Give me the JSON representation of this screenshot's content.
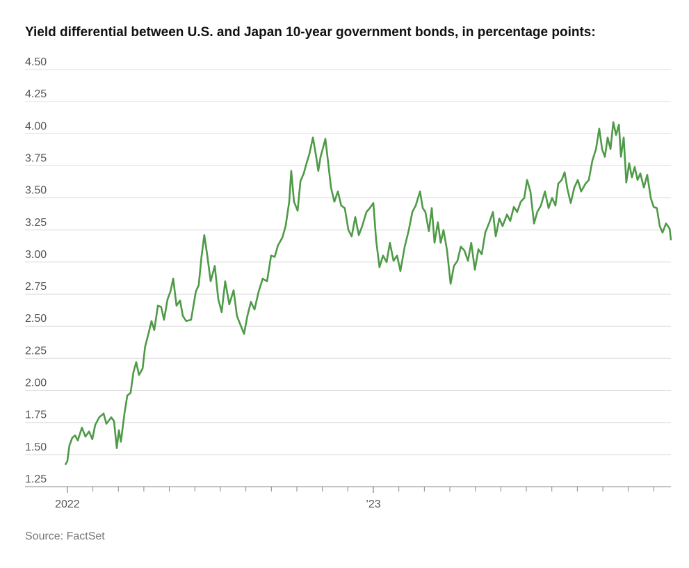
{
  "chart_data": {
    "type": "line",
    "title": "Yield differential between U.S. and Japan 10-year government bonds, in percentage points:",
    "source": "Source: FactSet",
    "x": [
      -0.08,
      0,
      0.08,
      0.19,
      0.3,
      0.41,
      0.57,
      0.71,
      0.85,
      0.98,
      1.09,
      1.25,
      1.42,
      1.53,
      1.72,
      1.83,
      1.94,
      2.02,
      2.1,
      2.24,
      2.35,
      2.48,
      2.59,
      2.7,
      2.81,
      2.95,
      3.05,
      3.19,
      3.3,
      3.41,
      3.55,
      3.68,
      3.79,
      3.93,
      4.04,
      4.15,
      4.28,
      4.42,
      4.53,
      4.66,
      4.85,
      5.04,
      5.15,
      5.26,
      5.37,
      5.48,
      5.62,
      5.78,
      5.92,
      6.05,
      6.19,
      6.35,
      6.52,
      6.65,
      6.79,
      6.93,
      7.06,
      7.2,
      7.34,
      7.5,
      7.66,
      7.83,
      7.99,
      8.13,
      8.26,
      8.43,
      8.56,
      8.7,
      8.78,
      8.89,
      9.03,
      9.14,
      9.27,
      9.38,
      9.49,
      9.63,
      9.76,
      9.84,
      9.93,
      10.04,
      10.12,
      10.23,
      10.34,
      10.47,
      10.61,
      10.74,
      10.88,
      11.02,
      11.15,
      11.29,
      11.43,
      11.56,
      11.73,
      11.86,
      12.0,
      12.11,
      12.24,
      12.38,
      12.52,
      12.65,
      12.79,
      12.93,
      13.06,
      13.23,
      13.39,
      13.53,
      13.66,
      13.83,
      13.94,
      14.04,
      14.18,
      14.29,
      14.4,
      14.53,
      14.64,
      14.75,
      14.89,
      15.03,
      15.16,
      15.3,
      15.43,
      15.57,
      15.71,
      15.84,
      15.98,
      16.12,
      16.25,
      16.39,
      16.55,
      16.69,
      16.8,
      16.94,
      17.07,
      17.24,
      17.37,
      17.51,
      17.64,
      17.78,
      17.92,
      18.03,
      18.16,
      18.3,
      18.43,
      18.57,
      18.73,
      18.87,
      19.01,
      19.14,
      19.25,
      19.39,
      19.5,
      19.61,
      19.74,
      19.88,
      20.02,
      20.15,
      20.32,
      20.45,
      20.59,
      20.73,
      20.86,
      20.97,
      21.08,
      21.19,
      21.3,
      21.41,
      21.52,
      21.63,
      21.71,
      21.82,
      21.92,
      22.03,
      22.14,
      22.25,
      22.36,
      22.47,
      22.61,
      22.74,
      22.88,
      22.99,
      23.12,
      23.23,
      23.34,
      23.48,
      23.62,
      23.67
    ],
    "series": [
      {
        "color": "#4e9a47",
        "values": [
          1.42,
          1.45,
          1.57,
          1.63,
          1.65,
          1.61,
          1.71,
          1.64,
          1.68,
          1.62,
          1.73,
          1.79,
          1.82,
          1.74,
          1.79,
          1.76,
          1.55,
          1.69,
          1.6,
          1.82,
          1.96,
          1.98,
          2.14,
          2.22,
          2.12,
          2.17,
          2.34,
          2.45,
          2.54,
          2.47,
          2.66,
          2.65,
          2.55,
          2.71,
          2.77,
          2.87,
          2.66,
          2.7,
          2.58,
          2.54,
          2.55,
          2.77,
          2.82,
          3.04,
          3.21,
          3.06,
          2.85,
          2.97,
          2.71,
          2.61,
          2.85,
          2.67,
          2.78,
          2.58,
          2.51,
          2.44,
          2.58,
          2.69,
          2.63,
          2.77,
          2.87,
          2.85,
          3.05,
          3.04,
          3.13,
          3.19,
          3.28,
          3.47,
          3.71,
          3.47,
          3.4,
          3.63,
          3.69,
          3.77,
          3.84,
          3.97,
          3.82,
          3.71,
          3.82,
          3.9,
          3.96,
          3.77,
          3.58,
          3.47,
          3.55,
          3.44,
          3.42,
          3.25,
          3.2,
          3.35,
          3.21,
          3.28,
          3.39,
          3.42,
          3.46,
          3.17,
          2.96,
          3.05,
          3.0,
          3.15,
          3.01,
          3.05,
          2.93,
          3.12,
          3.25,
          3.39,
          3.44,
          3.55,
          3.42,
          3.39,
          3.24,
          3.42,
          3.15,
          3.31,
          3.15,
          3.25,
          3.09,
          2.83,
          2.97,
          3.01,
          3.12,
          3.09,
          3.01,
          3.15,
          2.94,
          3.1,
          3.06,
          3.23,
          3.31,
          3.39,
          3.2,
          3.34,
          3.28,
          3.37,
          3.32,
          3.43,
          3.39,
          3.47,
          3.5,
          3.64,
          3.55,
          3.3,
          3.39,
          3.44,
          3.55,
          3.42,
          3.5,
          3.44,
          3.61,
          3.64,
          3.7,
          3.57,
          3.46,
          3.58,
          3.64,
          3.55,
          3.61,
          3.64,
          3.79,
          3.88,
          4.04,
          3.88,
          3.82,
          3.97,
          3.88,
          4.09,
          3.99,
          4.07,
          3.82,
          3.97,
          3.62,
          3.77,
          3.66,
          3.74,
          3.64,
          3.69,
          3.58,
          3.68,
          3.5,
          3.43,
          3.42,
          3.28,
          3.23,
          3.3,
          3.26,
          3.17
        ]
      }
    ],
    "xlim": [
      -1.66,
      23.67
    ],
    "xticks": [
      {
        "value": 0,
        "label": "2022"
      },
      {
        "value": 12,
        "label": "’23"
      }
    ],
    "xminor_ticks": [
      1,
      2,
      3,
      4,
      5,
      6,
      7,
      8,
      9,
      10,
      11,
      13,
      14,
      15,
      16,
      17,
      18,
      19,
      20,
      21,
      22,
      23
    ],
    "ylim": [
      1.25,
      4.5
    ],
    "yticks": [
      {
        "value": 1.25,
        "label": "1.25"
      },
      {
        "value": 1.5,
        "label": "1.50"
      },
      {
        "value": 1.75,
        "label": "1.75"
      },
      {
        "value": 2,
        "label": "2.00"
      },
      {
        "value": 2.25,
        "label": "2.25"
      },
      {
        "value": 2.5,
        "label": "2.50"
      },
      {
        "value": 2.75,
        "label": "2.75"
      },
      {
        "value": 3,
        "label": "3.00"
      },
      {
        "value": 3.25,
        "label": "3.25"
      },
      {
        "value": 3.5,
        "label": "3.50"
      },
      {
        "value": 3.75,
        "label": "3.75"
      },
      {
        "value": 4,
        "label": "4.00"
      },
      {
        "value": 4.25,
        "label": "4.25"
      },
      {
        "value": 4.5,
        "label": "4.50"
      }
    ],
    "grid": true
  }
}
